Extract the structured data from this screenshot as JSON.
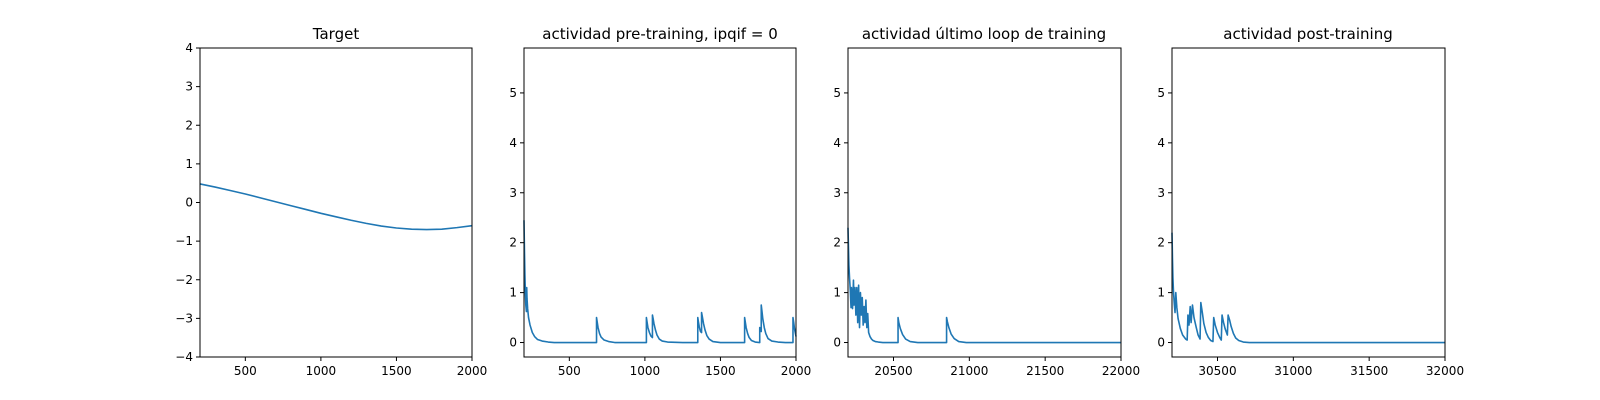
{
  "chart_data": [
    {
      "type": "line",
      "title": "Target",
      "xlim": [
        200,
        2000
      ],
      "ylim": [
        -4,
        4
      ],
      "xticks": [
        500,
        1000,
        1500,
        2000
      ],
      "yticks": [
        -4,
        -3,
        -2,
        -1,
        0,
        1,
        2,
        3,
        4
      ],
      "grid": false,
      "series": [
        {
          "color": "#1f77b4",
          "x": [
            200,
            300,
            400,
            500,
            600,
            700,
            800,
            900,
            1000,
            1100,
            1200,
            1300,
            1400,
            1500,
            1600,
            1700,
            1800,
            1900,
            2000
          ],
          "y": [
            0.48,
            0.4,
            0.31,
            0.22,
            0.12,
            0.02,
            -0.08,
            -0.18,
            -0.28,
            -0.37,
            -0.46,
            -0.54,
            -0.61,
            -0.66,
            -0.69,
            -0.7,
            -0.69,
            -0.65,
            -0.6
          ]
        }
      ]
    },
    {
      "type": "line",
      "title": "actividad pre-training, ipqif = 0",
      "xlim": [
        200,
        2000
      ],
      "ylim": [
        -0.29,
        5.9
      ],
      "xticks": [
        500,
        1000,
        1500,
        2000
      ],
      "yticks": [
        0,
        1,
        2,
        3,
        4,
        5
      ],
      "grid": false,
      "series": [
        {
          "color": "#1f77b4",
          "x": [
            200,
            203,
            206,
            209,
            212,
            216,
            218,
            220,
            224,
            230,
            240,
            255,
            270,
            290,
            320,
            360,
            400,
            500,
            600,
            680,
            680,
            684,
            690,
            700,
            710,
            730,
            760,
            800,
            900,
            1000,
            1010,
            1010,
            1014,
            1020,
            1030,
            1040,
            1050,
            1050,
            1055,
            1060,
            1070,
            1080,
            1095,
            1115,
            1150,
            1250,
            1350,
            1350,
            1354,
            1360,
            1368,
            1375,
            1375,
            1380,
            1388,
            1398,
            1410,
            1425,
            1450,
            1500,
            1600,
            1660,
            1660,
            1664,
            1670,
            1680,
            1690,
            1705,
            1730,
            1760,
            1760,
            1770,
            1770,
            1775,
            1780,
            1790,
            1800,
            1815,
            1840,
            1880,
            1930,
            1980,
            1980,
            1985,
            1990,
            1995,
            2000
          ],
          "y": [
            2.45,
            1.85,
            1.35,
            1.0,
            0.75,
            0.62,
            1.1,
            0.88,
            0.68,
            0.5,
            0.35,
            0.2,
            0.12,
            0.06,
            0.03,
            0.01,
            0.0,
            0.0,
            0.0,
            0.0,
            0.5,
            0.42,
            0.3,
            0.18,
            0.11,
            0.05,
            0.02,
            0.0,
            0.0,
            0.0,
            0.0,
            0.5,
            0.42,
            0.3,
            0.2,
            0.13,
            0.1,
            0.55,
            0.47,
            0.38,
            0.25,
            0.15,
            0.07,
            0.03,
            0.01,
            0.0,
            0.0,
            0.5,
            0.42,
            0.31,
            0.22,
            0.2,
            0.6,
            0.52,
            0.38,
            0.25,
            0.14,
            0.07,
            0.02,
            0.0,
            0.0,
            0.0,
            0.5,
            0.42,
            0.3,
            0.18,
            0.1,
            0.04,
            0.01,
            0.0,
            0.3,
            0.22,
            0.75,
            0.62,
            0.48,
            0.3,
            0.18,
            0.08,
            0.03,
            0.01,
            0.0,
            0.0,
            0.5,
            0.4,
            0.28,
            0.2,
            0.12
          ]
        }
      ]
    },
    {
      "type": "line",
      "title": "actividad último loop de training",
      "xlim": [
        20200,
        22000
      ],
      "ylim": [
        -0.29,
        5.9
      ],
      "xticks": [
        20500,
        21000,
        21500,
        22000
      ],
      "yticks": [
        0,
        1,
        2,
        3,
        4,
        5
      ],
      "grid": false,
      "series": [
        {
          "color": "#1f77b4",
          "x": [
            20200,
            20203,
            20206,
            20210,
            20215,
            20220,
            20223,
            20230,
            20236,
            20240,
            20246,
            20252,
            20258,
            20264,
            20270,
            20276,
            20282,
            20288,
            20294,
            20300,
            20306,
            20312,
            20318,
            20324,
            20330,
            20336,
            20345,
            20355,
            20365,
            20380,
            20400,
            20430,
            20470,
            20530,
            20530,
            20535,
            20545,
            20560,
            20580,
            20610,
            20660,
            20740,
            20850,
            20850,
            20855,
            20865,
            20880,
            20900,
            20930,
            20980,
            21100,
            21500,
            22000
          ],
          "y": [
            2.3,
            1.9,
            1.55,
            1.3,
            1.05,
            0.7,
            1.1,
            0.68,
            1.25,
            0.75,
            1.1,
            0.55,
            1.1,
            0.4,
            1.15,
            0.3,
            1.0,
            0.55,
            0.9,
            0.35,
            0.72,
            0.4,
            0.85,
            0.3,
            0.58,
            0.2,
            0.12,
            0.07,
            0.04,
            0.02,
            0.01,
            0.0,
            0.0,
            0.0,
            0.5,
            0.4,
            0.28,
            0.16,
            0.07,
            0.02,
            0.0,
            0.0,
            0.0,
            0.5,
            0.42,
            0.3,
            0.17,
            0.08,
            0.02,
            0.0,
            0.0,
            0.0,
            0.0
          ]
        }
      ]
    },
    {
      "type": "line",
      "title": "actividad post-training",
      "xlim": [
        30200,
        32000
      ],
      "ylim": [
        -0.29,
        5.9
      ],
      "xticks": [
        30500,
        31000,
        31500,
        32000
      ],
      "yticks": [
        0,
        1,
        2,
        3,
        4,
        5
      ],
      "grid": false,
      "series": [
        {
          "color": "#1f77b4",
          "x": [
            30200,
            30203,
            30206,
            30210,
            30215,
            30220,
            30225,
            30232,
            30240,
            30255,
            30270,
            30290,
            30300,
            30305,
            30312,
            30320,
            30326,
            30335,
            30345,
            30360,
            30372,
            30385,
            30390,
            30400,
            30410,
            30425,
            30440,
            30455,
            30470,
            30475,
            30485,
            30500,
            30515,
            30525,
            30530,
            30540,
            30550,
            30565,
            30570,
            30580,
            30590,
            30605,
            30620,
            30640,
            30670,
            30710,
            30780,
            31000,
            32000
          ],
          "y": [
            2.2,
            1.7,
            1.3,
            1.0,
            0.78,
            0.6,
            1.0,
            0.7,
            0.48,
            0.28,
            0.15,
            0.07,
            0.05,
            0.55,
            0.35,
            0.72,
            0.4,
            0.75,
            0.5,
            0.3,
            0.15,
            0.07,
            0.8,
            0.6,
            0.38,
            0.2,
            0.1,
            0.04,
            0.02,
            0.5,
            0.35,
            0.2,
            0.1,
            0.05,
            0.55,
            0.4,
            0.28,
            0.15,
            0.55,
            0.45,
            0.32,
            0.18,
            0.09,
            0.04,
            0.01,
            0.0,
            0.0,
            0.0,
            0.0
          ]
        }
      ]
    }
  ]
}
